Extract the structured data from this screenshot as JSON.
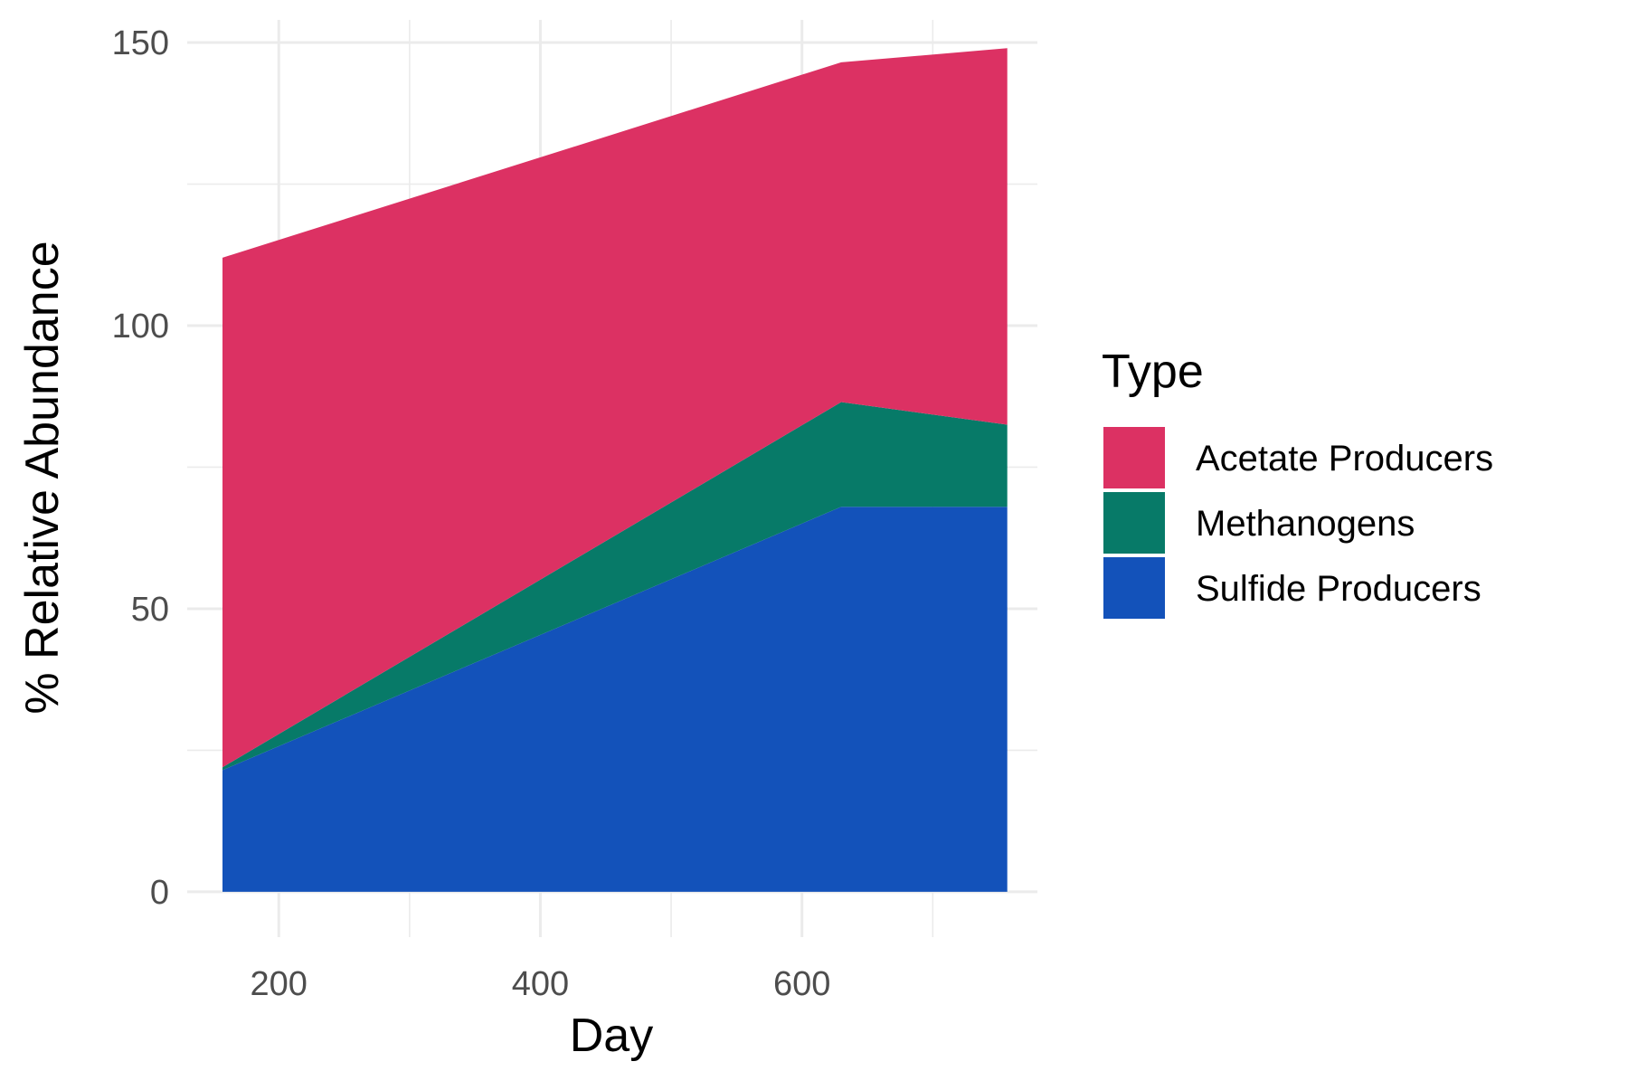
{
  "chart_data": {
    "type": "area",
    "stacked": true,
    "title": "",
    "xlabel": "Day",
    "ylabel": "% Relative Abundance",
    "xlim": [
      130,
      780
    ],
    "ylim": [
      -8,
      154
    ],
    "x_ticks": [
      200,
      400,
      600
    ],
    "y_ticks": [
      0,
      50,
      100,
      150
    ],
    "grid": true,
    "legend": {
      "title": "Type",
      "position": "right"
    },
    "x": [
      157,
      630,
      757
    ],
    "series": [
      {
        "name": "Acetate Producers",
        "color": "#DC3163",
        "values": [
          90,
          60,
          66.5
        ]
      },
      {
        "name": "Methanogens",
        "color": "#077A68",
        "values": [
          0.5,
          18.5,
          14.5
        ]
      },
      {
        "name": "Sulfide Producers",
        "color": "#1352BA",
        "values": [
          21.5,
          68,
          68
        ]
      }
    ]
  }
}
